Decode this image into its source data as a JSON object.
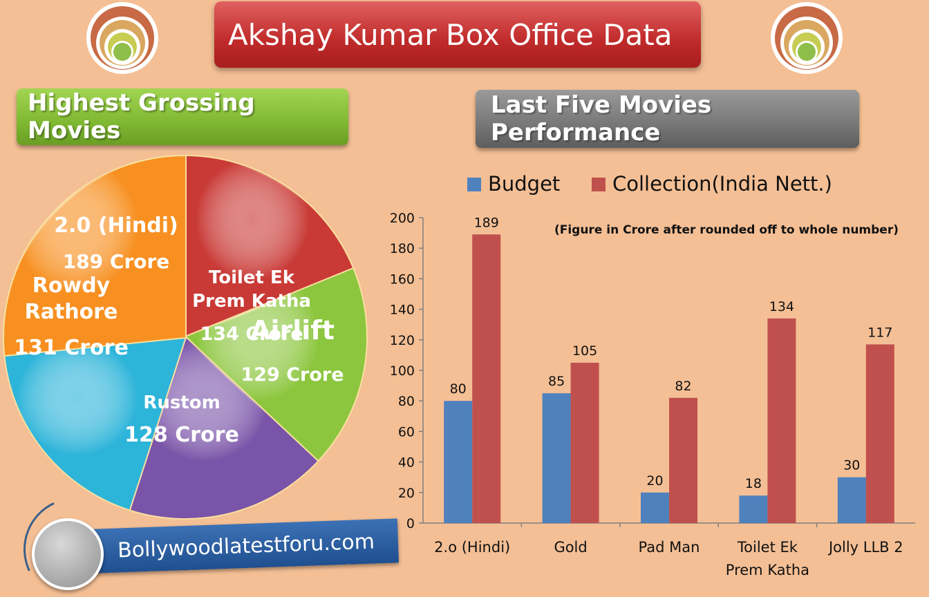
{
  "title": "Akshay Kumar Box Office Data",
  "pie_heading": "Highest Grossing Movies",
  "bar_heading": "Last Five Movies Performance",
  "brand": "Bollywoodlatestforu.com",
  "colors": {
    "background": "#f4bf95",
    "budget": "#4f81bd",
    "collection": "#c0504d",
    "pie_orange": "#f79021",
    "pie_red": "#c93a36",
    "pie_green": "#8cc63e",
    "pie_purple": "#7a54a8",
    "pie_cyan": "#2db4d9"
  },
  "chart_data": [
    {
      "type": "pie",
      "title": "Highest Grossing Movies",
      "slices": [
        {
          "label": "Toilet Ek Prem Katha",
          "value": 134,
          "value_label": "134 Crore",
          "color": "#c93a36"
        },
        {
          "label": "Airlift",
          "value": 129,
          "value_label": "129 Crore",
          "color": "#8cc63e"
        },
        {
          "label": "Rustom",
          "value": 128,
          "value_label": "128 Crore",
          "color": "#7a54a8"
        },
        {
          "label": "Rowdy Rathore",
          "value": 131,
          "value_label": "131 Crore",
          "color": "#2db4d9"
        },
        {
          "label": "2.0 (Hindi)",
          "value": 189,
          "value_label": "189 Crore",
          "color": "#f79021"
        }
      ]
    },
    {
      "type": "bar",
      "title": "Last Five Movies Performance",
      "note": "(Figure in Crore after rounded off to whole number)",
      "categories": [
        "2.o (Hindi)",
        "Gold",
        "Pad Man",
        "Toilet Ek Prem Katha",
        "Jolly LLB 2"
      ],
      "series": [
        {
          "name": "Budget",
          "values": [
            80,
            85,
            20,
            18,
            30
          ],
          "color": "#4f81bd"
        },
        {
          "name": "Collection(India Nett.)",
          "values": [
            189,
            105,
            82,
            134,
            117
          ],
          "color": "#c0504d"
        }
      ],
      "ylim": [
        0,
        200
      ],
      "yticks": [
        0,
        20,
        40,
        60,
        80,
        100,
        120,
        140,
        160,
        180,
        200
      ],
      "legend": "top",
      "grid": false
    }
  ]
}
